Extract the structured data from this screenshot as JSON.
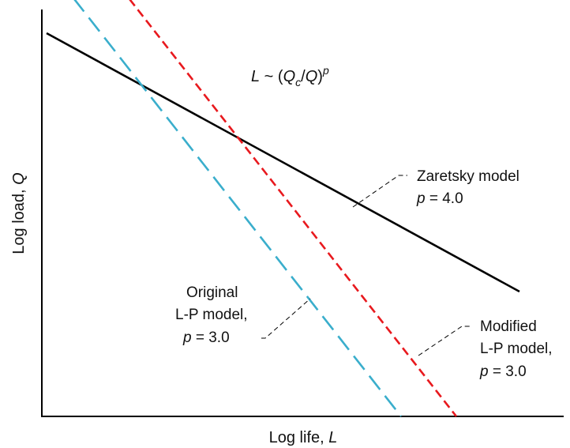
{
  "chart_data": {
    "type": "line",
    "title": "",
    "xlabel": {
      "text": "Log life, ",
      "var": "L"
    },
    "ylabel": {
      "text": "Log load, ",
      "var": "Q"
    },
    "ticks": "none",
    "grid": false,
    "equation": {
      "L": "L",
      "tilde": " ~ (",
      "Q": "Q",
      "c": "c",
      "slash": "/",
      "Q2": "Q",
      "close": ")",
      "p": "p"
    },
    "series": [
      {
        "key": "zaretsky",
        "label_line1": "Zaretsky model",
        "p_var": "p",
        "p_text": " = 4.0",
        "color": "#000000",
        "dash": "solid",
        "points": [
          [
            0.6,
            485
          ],
          [
            60.5,
            158
          ]
        ]
      },
      {
        "key": "original",
        "label_line1": "Original",
        "label_line2": "L-P model,",
        "p_var": "p",
        "p_text": " = 3.0",
        "color": "#3aaecc",
        "dash": "long-dash",
        "points": [
          [
            2.0,
            555
          ],
          [
            45.5,
            0
          ]
        ]
      },
      {
        "key": "modified",
        "label_line1": "Modified",
        "label_line2": "L-P model,",
        "p_var": "p",
        "p_text": " = 3.0",
        "color": "#e8191e",
        "dash": "short-dash",
        "points": [
          [
            9.0,
            555
          ],
          [
            52.5,
            0
          ]
        ]
      }
    ]
  }
}
